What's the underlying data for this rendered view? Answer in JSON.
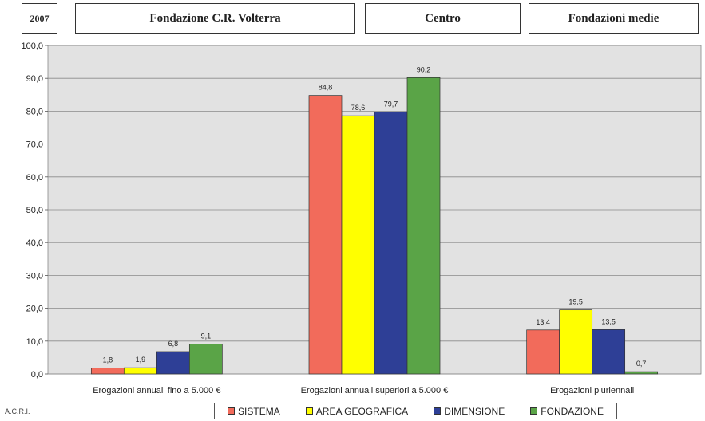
{
  "header": {
    "year": "2007",
    "fondazione": "Fondazione C.R. Volterra",
    "area": "Centro",
    "dimensione": "Fondazioni medie"
  },
  "footer": {
    "source": "A.C.R.I."
  },
  "chart_data": {
    "type": "bar",
    "categories": [
      "Erogazioni annuali fino a 5.000 €",
      "Erogazioni annuali superiori a 5.000 €",
      "Erogazioni pluriennali"
    ],
    "series": [
      {
        "name": "SISTEMA",
        "color": "#f26b5b",
        "values": [
          1.8,
          84.8,
          13.4
        ],
        "labels": [
          "1,8",
          "84,8",
          "13,4"
        ]
      },
      {
        "name": "AREA GEOGRAFICA",
        "color": "#ffff00",
        "values": [
          1.9,
          78.6,
          19.5
        ],
        "labels": [
          "1,9",
          "78,6",
          "19,5"
        ]
      },
      {
        "name": "DIMENSIONE",
        "color": "#2e3f96",
        "values": [
          6.8,
          79.7,
          13.5
        ],
        "labels": [
          "6,8",
          "79,7",
          "13,5"
        ]
      },
      {
        "name": "FONDAZIONE",
        "color": "#5aa447",
        "values": [
          9.1,
          90.2,
          0.7
        ],
        "labels": [
          "9,1",
          "90,2",
          "0,7"
        ]
      }
    ],
    "ylim": [
      0,
      100
    ],
    "yticks": [
      "0,0",
      "10,0",
      "20,0",
      "30,0",
      "40,0",
      "50,0",
      "60,0",
      "70,0",
      "80,0",
      "90,0",
      "100,0"
    ],
    "plot_background": "#e2e2e2",
    "grid": true,
    "legend_position": "bottom"
  }
}
